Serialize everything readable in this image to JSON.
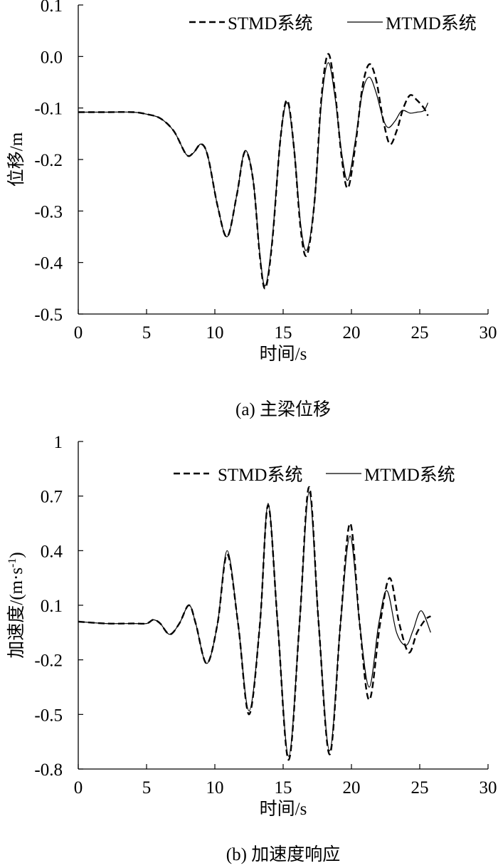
{
  "chart_data": [
    {
      "type": "line",
      "caption": "(a) 主梁位移",
      "xlabel": "时间/s",
      "ylabel": "位移/m",
      "xlim": [
        0,
        30
      ],
      "ylim": [
        -0.5,
        0.1
      ],
      "xticks": [
        0,
        5,
        10,
        15,
        20,
        25,
        30
      ],
      "yticks": [
        0.1,
        0.0,
        -0.1,
        -0.2,
        -0.3,
        -0.4,
        -0.5
      ],
      "xtick_labels": [
        "0",
        "5",
        "10",
        "15",
        "20",
        "25",
        "30"
      ],
      "ytick_labels": [
        "0.1",
        "0.0",
        "-0.1",
        "-0.2",
        "-0.3",
        "-0.4",
        "-0.5"
      ],
      "legend_position": "top-right",
      "grid": false,
      "series": [
        {
          "name": "STMD系统",
          "style": "dashed",
          "x": [
            0,
            2,
            4,
            5,
            6,
            7,
            7.9,
            8.4,
            9,
            9.5,
            10.2,
            10.9,
            11.6,
            12.2,
            12.8,
            13.3,
            13.7,
            14.2,
            14.8,
            15.3,
            15.8,
            16.3,
            16.75,
            17.3,
            17.8,
            18.3,
            18.8,
            19.3,
            19.75,
            20.3,
            20.8,
            21.3,
            21.8,
            22.3,
            22.8,
            23.3,
            23.8,
            24.3,
            24.8,
            25.3,
            25.6
          ],
          "y": [
            -0.108,
            -0.108,
            -0.108,
            -0.112,
            -0.12,
            -0.145,
            -0.19,
            -0.188,
            -0.17,
            -0.195,
            -0.29,
            -0.35,
            -0.27,
            -0.185,
            -0.24,
            -0.39,
            -0.45,
            -0.36,
            -0.16,
            -0.085,
            -0.18,
            -0.34,
            -0.385,
            -0.28,
            -0.08,
            0.005,
            -0.07,
            -0.2,
            -0.255,
            -0.17,
            -0.06,
            -0.015,
            -0.045,
            -0.12,
            -0.17,
            -0.145,
            -0.1,
            -0.075,
            -0.085,
            -0.1,
            -0.115
          ]
        },
        {
          "name": "MTMD系统",
          "style": "solid",
          "x": [
            0,
            2,
            4,
            5,
            6,
            7,
            7.9,
            8.4,
            9,
            9.5,
            10.2,
            10.9,
            11.6,
            12.2,
            12.8,
            13.3,
            13.7,
            14.2,
            14.8,
            15.3,
            15.8,
            16.3,
            16.75,
            17.3,
            17.8,
            18.3,
            18.8,
            19.3,
            19.75,
            20.3,
            20.8,
            21.3,
            21.8,
            22.3,
            22.7,
            23.2,
            23.7,
            24.3,
            24.8,
            25.3,
            25.6
          ],
          "y": [
            -0.108,
            -0.108,
            -0.108,
            -0.112,
            -0.12,
            -0.145,
            -0.19,
            -0.188,
            -0.17,
            -0.195,
            -0.29,
            -0.35,
            -0.27,
            -0.183,
            -0.24,
            -0.385,
            -0.445,
            -0.355,
            -0.16,
            -0.09,
            -0.18,
            -0.33,
            -0.375,
            -0.28,
            -0.09,
            -0.012,
            -0.08,
            -0.19,
            -0.24,
            -0.16,
            -0.07,
            -0.04,
            -0.07,
            -0.12,
            -0.138,
            -0.125,
            -0.105,
            -0.11,
            -0.108,
            -0.105,
            -0.09
          ]
        }
      ]
    },
    {
      "type": "line",
      "caption": "(b) 加速度响应",
      "xlabel": "时间/s",
      "ylabel_main": "加速度/(m·s",
      "ylabel_sup": "-1",
      "ylabel_close": ")",
      "xlim": [
        0,
        30
      ],
      "ylim": [
        -0.8,
        1.0
      ],
      "xticks": [
        0,
        5,
        10,
        15,
        20,
        25,
        30
      ],
      "yticks": [
        1.0,
        0.7,
        0.4,
        0.1,
        -0.2,
        -0.5,
        -0.8
      ],
      "xtick_labels": [
        "0",
        "5",
        "10",
        "15",
        "20",
        "25",
        "30"
      ],
      "ytick_labels": [
        "1",
        "0.7",
        "0.4",
        "0.1",
        "-0.2",
        "-0.5",
        "-0.8"
      ],
      "legend_position": "top-right",
      "grid": false,
      "series": [
        {
          "name": "STMD系统",
          "style": "dashed",
          "x": [
            0,
            2,
            4,
            5,
            5.5,
            6,
            6.7,
            7.4,
            8.1,
            8.6,
            9.4,
            10.2,
            10.9,
            11.7,
            12.5,
            13.3,
            13.9,
            14.6,
            15.4,
            16.2,
            16.9,
            17.6,
            18.4,
            19.2,
            19.9,
            20.6,
            21.3,
            22.1,
            22.8,
            23.5,
            24.2,
            24.8,
            25.4,
            25.8
          ],
          "y": [
            0.01,
            0.0,
            0.0,
            0.0,
            0.02,
            0.0,
            -0.06,
            0.0,
            0.1,
            0.0,
            -0.22,
            0.0,
            0.38,
            0.0,
            -0.5,
            0.0,
            0.65,
            0.0,
            -0.75,
            0.0,
            0.75,
            0.0,
            -0.72,
            0.0,
            0.55,
            0.0,
            -0.42,
            0.0,
            0.25,
            0.0,
            -0.16,
            -0.05,
            0.02,
            0.04
          ]
        },
        {
          "name": "MTMD系统",
          "style": "solid",
          "x": [
            0,
            2,
            4,
            5,
            5.5,
            6,
            6.7,
            7.4,
            8.1,
            8.6,
            9.4,
            10.2,
            10.9,
            11.7,
            12.5,
            13.3,
            13.9,
            14.6,
            15.4,
            16.2,
            16.9,
            17.6,
            18.4,
            19.2,
            19.9,
            20.6,
            21.3,
            22,
            22.6,
            23.3,
            24,
            24.5,
            25.1,
            25.8
          ],
          "y": [
            0.01,
            0.0,
            0.0,
            0.0,
            0.02,
            0.0,
            -0.06,
            0.0,
            0.1,
            0.0,
            -0.22,
            0.0,
            0.4,
            0.0,
            -0.48,
            0.0,
            0.66,
            0.0,
            -0.73,
            0.0,
            0.72,
            0.0,
            -0.7,
            0.0,
            0.48,
            0.0,
            -0.35,
            0.0,
            0.18,
            -0.05,
            -0.12,
            -0.04,
            0.07,
            -0.05
          ]
        }
      ]
    }
  ]
}
